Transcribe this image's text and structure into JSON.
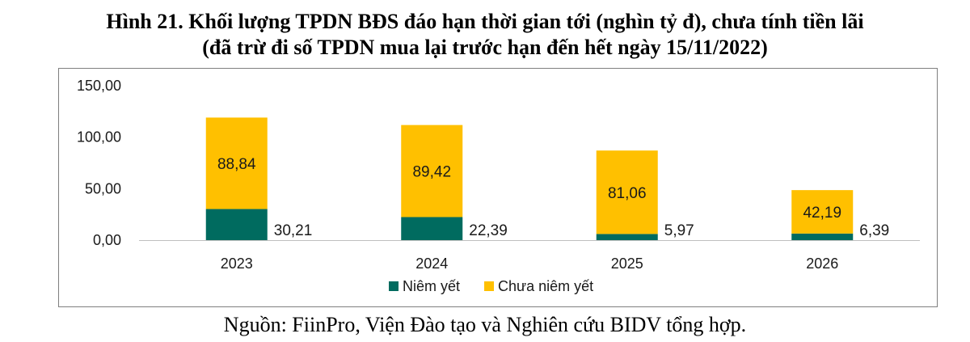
{
  "title_line1": "Hình 21. Khối lượng TPDN BĐS đáo hạn thời gian tới (nghìn tỷ đ), chưa tính tiền lãi",
  "title_line2": "(đã trừ đi số TPDN mua lại trước hạn đến hết ngày 15/11/2022)",
  "source": "Nguồn: FiinPro, Viện Đào tạo và Nghiên cứu BIDV tổng hợp.",
  "chart_data": {
    "type": "bar",
    "title": "Hình 21. Khối lượng TPDN BĐS đáo hạn thời gian tới (nghìn tỷ đ), chưa tính tiền lãi (đã trừ đi số TPDN mua lại trước hạn đến hết ngày 15/11/2022)",
    "categories": [
      "2023",
      "2024",
      "2025",
      "2026"
    ],
    "series": [
      {
        "name": "Niêm yết",
        "values": [
          30.21,
          22.39,
          5.97,
          6.39
        ],
        "labels": [
          "30,21",
          "22,39",
          "5,97",
          "6,39"
        ],
        "color": "#006b5f"
      },
      {
        "name": "Chưa niêm yết",
        "values": [
          88.84,
          89.42,
          81.06,
          42.19
        ],
        "labels": [
          "88,84",
          "89,42",
          "81,06",
          "42,19"
        ],
        "color": "#ffc000"
      }
    ],
    "stacked": true,
    "ylim": [
      0,
      150
    ],
    "yticks": [
      0,
      50,
      100,
      150
    ],
    "ytick_labels": [
      "0,00",
      "50,00",
      "100,00",
      "150,00"
    ],
    "xlabel": "",
    "ylabel": "",
    "grid": false,
    "legend_position": "bottom"
  }
}
